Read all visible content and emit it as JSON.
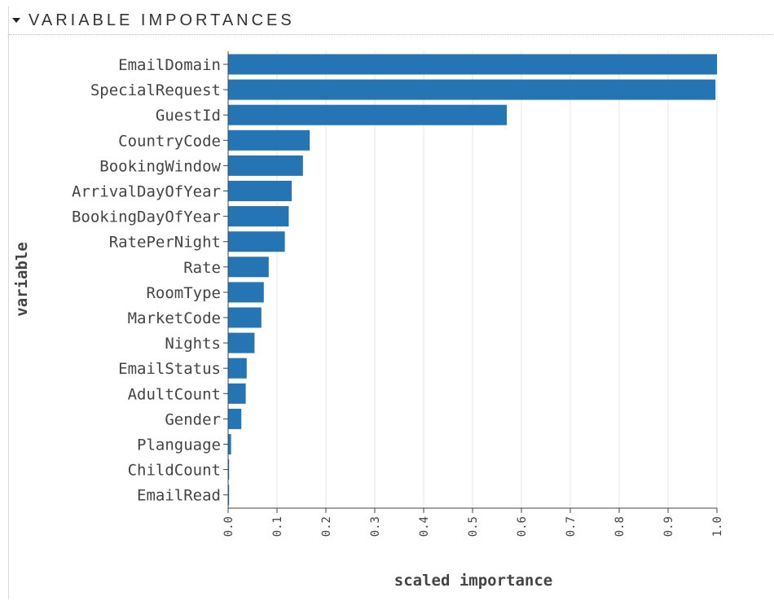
{
  "panel": {
    "title": "VARIABLE IMPORTANCES"
  },
  "colors": {
    "bar": "#2574b4",
    "grid": "#e6e6e6",
    "axis": "#444444"
  },
  "chart_data": {
    "type": "bar",
    "orientation": "horizontal",
    "xlabel": "scaled importance",
    "ylabel": "variable",
    "xlim": [
      0,
      1.0
    ],
    "xticks": [
      "0.0",
      "0.1",
      "0.2",
      "0.3",
      "0.4",
      "0.5",
      "0.6",
      "0.7",
      "0.8",
      "0.9",
      "1.0"
    ],
    "grid": "vertical",
    "categories": [
      "EmailDomain",
      "SpecialRequest",
      "GuestId",
      "CountryCode",
      "BookingWindow",
      "ArrivalDayOfYear",
      "BookingDayOfYear",
      "RatePerNight",
      "Rate",
      "RoomType",
      "MarketCode",
      "Nights",
      "EmailStatus",
      "AdultCount",
      "Gender",
      "Planguage",
      "ChildCount",
      "EmailRead"
    ],
    "values": [
      1.0,
      0.997,
      0.57,
      0.167,
      0.153,
      0.13,
      0.124,
      0.116,
      0.083,
      0.073,
      0.068,
      0.054,
      0.038,
      0.036,
      0.027,
      0.006,
      0.002,
      0.002
    ]
  }
}
